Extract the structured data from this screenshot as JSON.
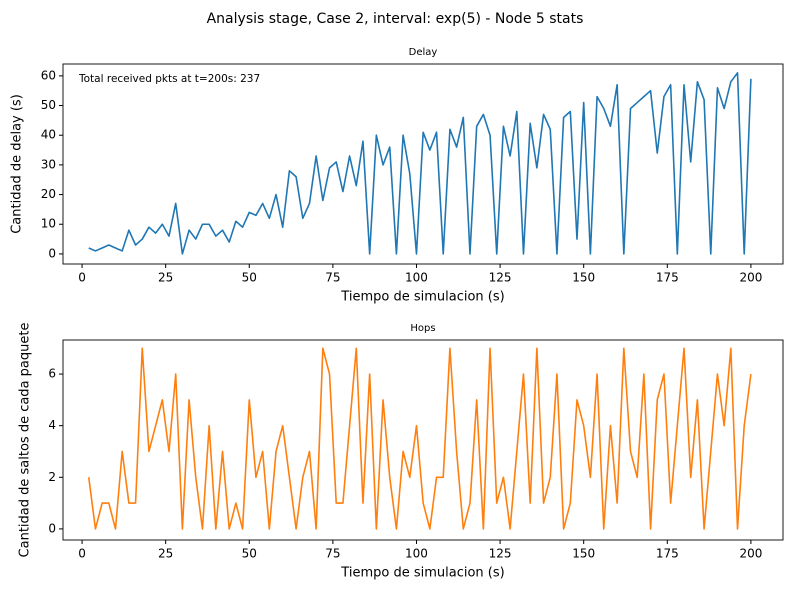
{
  "title": "Analysis stage, Case 2, interval: exp(5) - Node 5 stats",
  "chart_data": [
    {
      "type": "line",
      "title": "Delay",
      "xlabel": "Tiempo de simulacion (s)",
      "ylabel": "Cantidad de delay (s)",
      "annotation": "Total received pkts at t=200s: 237",
      "xlim": [
        -5.7,
        209.6
      ],
      "ylim": [
        -3.4,
        64
      ],
      "xticks": [
        0,
        25,
        50,
        75,
        100,
        125,
        150,
        175,
        200
      ],
      "yticks": [
        0,
        10,
        20,
        30,
        40,
        50,
        60
      ],
      "x": [
        2,
        4,
        6,
        8,
        10,
        12,
        14,
        16,
        18,
        20,
        22,
        24,
        26,
        28,
        30,
        32,
        34,
        36,
        38,
        40,
        42,
        44,
        46,
        48,
        50,
        52,
        54,
        56,
        58,
        60,
        62,
        64,
        66,
        68,
        70,
        72,
        74,
        76,
        78,
        80,
        82,
        84,
        86,
        88,
        90,
        92,
        94,
        96,
        98,
        100,
        102,
        104,
        106,
        108,
        110,
        112,
        114,
        116,
        118,
        120,
        122,
        124,
        126,
        128,
        130,
        132,
        134,
        136,
        138,
        140,
        142,
        144,
        146,
        148,
        150,
        152,
        154,
        156,
        158,
        160,
        162,
        164,
        166,
        168,
        170,
        172,
        174,
        176,
        178,
        180,
        182,
        184,
        186,
        188,
        190,
        192,
        194,
        196,
        198,
        200
      ],
      "series": [
        {
          "name": "Delay",
          "color": "#1f77b4",
          "values": [
            2,
            1,
            2,
            3,
            2,
            1,
            8,
            3,
            5,
            9,
            7,
            10,
            6,
            17,
            0,
            8,
            5,
            10,
            10,
            6,
            8,
            4,
            11,
            9,
            14,
            13,
            17,
            12,
            20,
            9,
            28,
            26,
            12,
            17,
            33,
            18,
            29,
            31,
            21,
            33,
            23,
            38,
            0,
            40,
            30,
            36,
            0,
            40,
            27,
            0,
            41,
            35,
            41,
            0,
            42,
            36,
            46,
            0,
            43,
            47,
            40,
            0,
            43,
            33,
            48,
            0,
            44,
            29,
            47,
            42,
            0,
            46,
            48,
            5,
            51,
            0,
            53,
            49,
            43,
            57,
            0,
            49,
            51,
            53,
            55,
            34,
            53,
            57,
            0,
            57,
            31,
            58,
            52,
            0,
            56,
            49,
            58,
            61,
            0,
            59
          ]
        }
      ]
    },
    {
      "type": "line",
      "title": "Hops",
      "xlabel": "Tiempo de simulacion (s)",
      "ylabel": "Cantidad de saltos de cada paquete",
      "xlim": [
        -5.7,
        209.6
      ],
      "ylim": [
        -0.43,
        7.32
      ],
      "xticks": [
        0,
        25,
        50,
        75,
        100,
        125,
        150,
        175,
        200
      ],
      "yticks": [
        0,
        2,
        4,
        6
      ],
      "x": [
        2,
        4,
        6,
        8,
        10,
        12,
        14,
        16,
        18,
        20,
        22,
        24,
        26,
        28,
        30,
        32,
        34,
        36,
        38,
        40,
        42,
        44,
        46,
        48,
        50,
        52,
        54,
        56,
        58,
        60,
        62,
        64,
        66,
        68,
        70,
        72,
        74,
        76,
        78,
        80,
        82,
        84,
        86,
        88,
        90,
        92,
        94,
        96,
        98,
        100,
        102,
        104,
        106,
        108,
        110,
        112,
        114,
        116,
        118,
        120,
        122,
        124,
        126,
        128,
        130,
        132,
        134,
        136,
        138,
        140,
        142,
        144,
        146,
        148,
        150,
        152,
        154,
        156,
        158,
        160,
        162,
        164,
        166,
        168,
        170,
        172,
        174,
        176,
        178,
        180,
        182,
        184,
        186,
        188,
        190,
        192,
        194,
        196,
        198,
        200
      ],
      "series": [
        {
          "name": "Hops",
          "color": "#ff7f0e",
          "values": [
            2,
            0,
            1,
            1,
            0,
            3,
            1,
            1,
            7,
            3,
            4,
            5,
            3,
            6,
            0,
            5,
            2,
            0,
            4,
            0,
            3,
            0,
            1,
            0,
            5,
            2,
            3,
            0,
            3,
            4,
            2,
            0,
            2,
            3,
            0,
            7,
            6,
            1,
            1,
            4,
            7,
            1,
            6,
            0,
            5,
            2,
            0,
            3,
            2,
            4,
            1,
            0,
            2,
            2,
            7,
            3,
            0,
            1,
            5,
            0,
            7,
            1,
            2,
            0,
            3,
            6,
            1,
            7,
            1,
            2,
            6,
            0,
            1,
            5,
            4,
            2,
            6,
            0,
            4,
            1,
            7,
            3,
            2,
            6,
            0,
            5,
            6,
            1,
            4,
            7,
            2,
            5,
            0,
            3,
            6,
            4,
            7,
            0,
            4,
            6
          ]
        }
      ]
    }
  ]
}
